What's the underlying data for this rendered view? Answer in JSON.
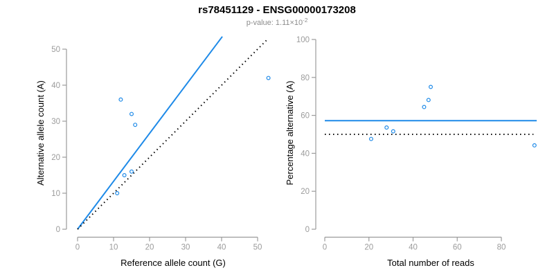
{
  "header": {
    "title": "rs78451129 - ENSG00000173208",
    "pvalue_prefix": "p-value: 1.11×10",
    "pvalue_exponent": "-2"
  },
  "colors": {
    "accent_blue": "#1E8AE8",
    "axis_gray": "#9b9b9b",
    "subtitle_gray": "#8c8c8c",
    "identity_black": "#000000",
    "title_black": "#000000"
  },
  "chart_data": [
    {
      "id": "allele-counts",
      "type": "scatter",
      "title": "",
      "xlabel": "Reference allele count (G)",
      "ylabel": "Alternative allele count (A)",
      "x_ticks": [
        0,
        10,
        20,
        30,
        40,
        50
      ],
      "y_ticks": [
        0,
        10,
        20,
        30,
        40,
        50
      ],
      "xlim": [
        0,
        53.5
      ],
      "ylim": [
        0,
        53.5
      ],
      "grid": false,
      "points": [
        [
          11,
          10
        ],
        [
          13,
          15
        ],
        [
          15,
          16
        ],
        [
          12,
          36
        ],
        [
          15,
          32
        ],
        [
          16,
          29
        ],
        [
          53,
          42
        ]
      ],
      "lines": [
        {
          "name": "fitted-ratio-line",
          "style": "solid",
          "color_key": "accent_blue",
          "slope": 1.33,
          "from": [
            0,
            0
          ],
          "to": [
            40.2,
            53.5
          ]
        },
        {
          "name": "identity-line",
          "style": "dotted",
          "color_key": "identity_black",
          "slope": 1.0,
          "from": [
            0,
            0
          ],
          "to": [
            53,
            53
          ]
        }
      ]
    },
    {
      "id": "percentage-vs-reads",
      "type": "scatter",
      "title": "",
      "xlabel": "Total number of reads",
      "ylabel": "Percentage alternative (A)",
      "x_ticks": [
        0,
        20,
        40,
        60,
        80
      ],
      "y_ticks": [
        0,
        20,
        40,
        60,
        80,
        100
      ],
      "xlim": [
        0,
        96
      ],
      "ylim": [
        0,
        100
      ],
      "grid": false,
      "points": [
        [
          21,
          47.6
        ],
        [
          28,
          53.6
        ],
        [
          31,
          51.6
        ],
        [
          45,
          64.4
        ],
        [
          47,
          68.1
        ],
        [
          48,
          75.0
        ],
        [
          95,
          44.2
        ]
      ],
      "lines": [
        {
          "name": "fitted-percentage-line",
          "style": "solid",
          "color_key": "accent_blue",
          "value": 57.2,
          "from": [
            0,
            57.2
          ],
          "to": [
            96,
            57.2
          ]
        },
        {
          "name": "null-50-percent-line",
          "style": "dotted",
          "color_key": "identity_black",
          "value": 50,
          "from": [
            0,
            50
          ],
          "to": [
            94.5,
            50
          ]
        }
      ]
    }
  ]
}
